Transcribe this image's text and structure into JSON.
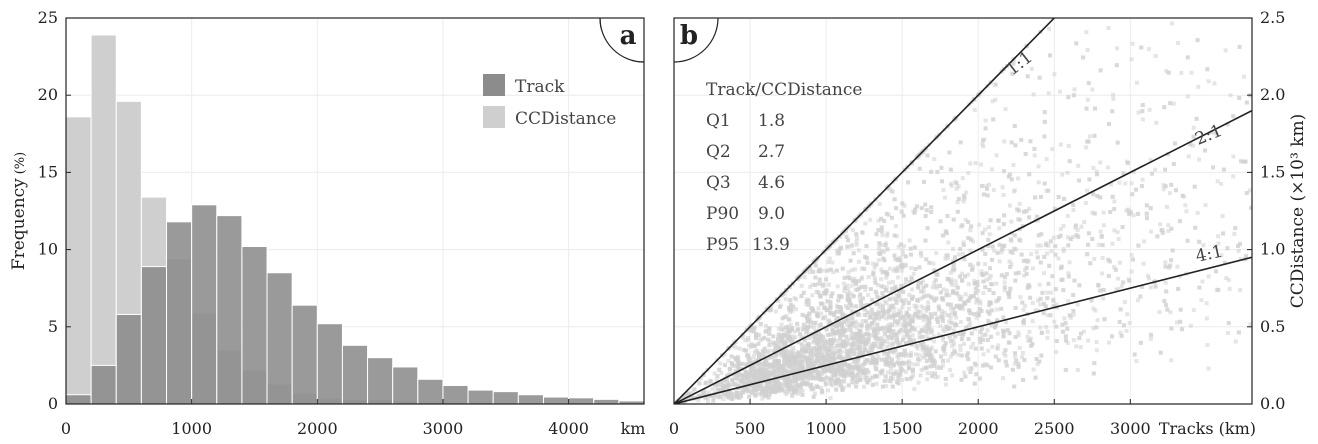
{
  "colors": {
    "track": "#8c8c8c",
    "ccdistance": "#cfcfcf",
    "scatter_point": "#d0d0d0",
    "ref_line": "#222222",
    "grid": "#ececec"
  },
  "chart_data": [
    {
      "panel": "a",
      "type": "bar",
      "xlabel": "",
      "xunit": "km",
      "ylabel": "Frequency",
      "yunit": "(%)",
      "xlim": [
        0,
        4600
      ],
      "ylim": [
        0,
        25
      ],
      "xticks": [
        0,
        1000,
        2000,
        3000,
        4000
      ],
      "xtick_labels": [
        "0",
        "1000",
        "2000",
        "3000",
        "4000"
      ],
      "yticks": [
        0,
        5,
        10,
        15,
        20,
        25
      ],
      "ytick_labels": [
        "0",
        "5",
        "10",
        "15",
        "20",
        "25"
      ],
      "grid": true,
      "legend_position": "top-right",
      "bin_width": 200,
      "bin_starts": [
        0,
        200,
        400,
        600,
        800,
        1000,
        1200,
        1400,
        1600,
        1800,
        2000,
        2200,
        2400,
        2600,
        2800,
        3000,
        3200,
        3400,
        3600,
        3800,
        4000,
        4200,
        4400
      ],
      "series": [
        {
          "name": "CCDistance",
          "values": [
            18.6,
            23.9,
            19.6,
            13.4,
            9.4,
            5.9,
            3.5,
            2.2,
            1.3,
            0.7,
            0.4,
            0.3,
            0.3,
            0.2,
            0.1,
            0.1,
            0.1,
            0.05,
            0.05,
            0.03,
            0.02,
            0.01,
            0.01
          ]
        },
        {
          "name": "Track",
          "values": [
            0.6,
            2.5,
            5.8,
            8.9,
            11.8,
            12.9,
            12.2,
            10.2,
            8.5,
            6.4,
            5.2,
            3.8,
            3.0,
            2.4,
            1.6,
            1.2,
            0.9,
            0.8,
            0.6,
            0.45,
            0.4,
            0.3,
            0.2
          ]
        }
      ]
    },
    {
      "panel": "b",
      "type": "scatter",
      "xlabel": "Tracks (km)",
      "ylabel": "CCDistance (×10³ km)",
      "xlim": [
        0,
        3800
      ],
      "ylim": [
        0,
        2.5
      ],
      "xticks": [
        0,
        500,
        1000,
        1500,
        2000,
        2500,
        3000
      ],
      "xtick_labels": [
        "0",
        "500",
        "1000",
        "1500",
        "2000",
        "2500",
        "3000"
      ],
      "yticks": [
        0.0,
        0.5,
        1.0,
        1.5,
        2.0,
        2.5
      ],
      "ytick_labels": [
        "0.0",
        "0.5",
        "1.0",
        "1.5",
        "2.0",
        "2.5"
      ],
      "y_axis_side": "right",
      "grid": true,
      "reference_lines": [
        {
          "label": "1:1",
          "ratio": 1
        },
        {
          "label": "2:1",
          "ratio": 2
        },
        {
          "label": "4:1",
          "ratio": 4
        }
      ],
      "stats_title": "Track/CCDistance",
      "stats": [
        {
          "name": "Q1",
          "value": "1.8"
        },
        {
          "name": "Q2",
          "value": "2.7"
        },
        {
          "name": "Q3",
          "value": "4.6"
        },
        {
          "name": "P90",
          "value": "9.0"
        },
        {
          "name": "P95",
          "value": "13.9"
        }
      ]
    }
  ]
}
